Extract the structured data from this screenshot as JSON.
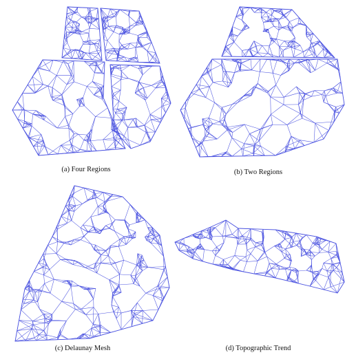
{
  "figure": {
    "mesh_color": "#4a52e0",
    "panels": [
      {
        "id": "a",
        "caption": "(a) Four Regions"
      },
      {
        "id": "b",
        "caption": "(b) Two Regions"
      },
      {
        "id": "c",
        "caption": "(c) Delaunay Mesh"
      },
      {
        "id": "d",
        "caption": "(d) Topographic Trend"
      }
    ]
  }
}
